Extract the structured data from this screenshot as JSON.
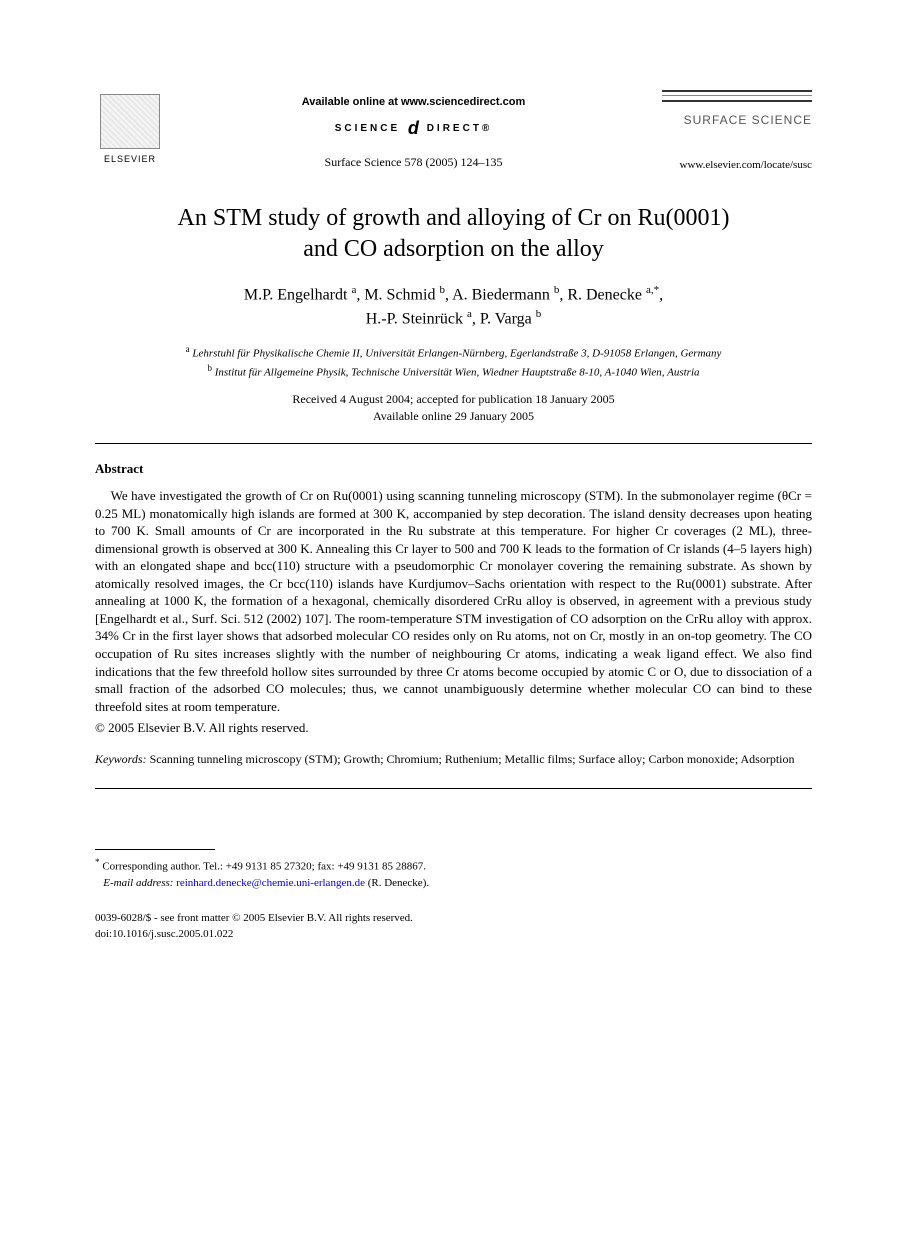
{
  "header": {
    "elsevier_label": "ELSEVIER",
    "available_online": "Available online at www.sciencedirect.com",
    "science_left": "SCIENCE",
    "science_at": "d",
    "science_right": "DIRECT®",
    "journal_ref": "Surface Science 578 (2005) 124–135",
    "journal_name": "SURFACE SCIENCE",
    "journal_url": "www.elsevier.com/locate/susc"
  },
  "title_line1": "An STM study of growth and alloying of Cr on Ru(0001)",
  "title_line2": "and CO adsorption on the alloy",
  "authors": {
    "a1": "M.P. Engelhardt",
    "a1_sup": "a",
    "a2": "M. Schmid",
    "a2_sup": "b",
    "a3": "A. Biedermann",
    "a3_sup": "b",
    "a4": "R. Denecke",
    "a4_sup": "a,*",
    "a5": "H.-P. Steinrück",
    "a5_sup": "a",
    "a6": "P. Varga",
    "a6_sup": "b"
  },
  "affiliations": {
    "a_sup": "a",
    "a_text": "Lehrstuhl für Physikalische Chemie II, Universität Erlangen-Nürnberg, Egerlandstraße 3, D-91058 Erlangen, Germany",
    "b_sup": "b",
    "b_text": "Institut für Allgemeine Physik, Technische Universität Wien, Wiedner Hauptstraße 8-10, A-1040 Wien, Austria"
  },
  "dates": {
    "received": "Received 4 August 2004; accepted for publication 18 January 2005",
    "online": "Available online 29 January 2005"
  },
  "abstract": {
    "heading": "Abstract",
    "body": "We have investigated the growth of Cr on Ru(0001) using scanning tunneling microscopy (STM). In the submonolayer regime (θCr = 0.25 ML) monatomically high islands are formed at 300 K, accompanied by step decoration. The island density decreases upon heating to 700 K. Small amounts of Cr are incorporated in the Ru substrate at this temperature. For higher Cr coverages (2 ML), three-dimensional growth is observed at 300 K. Annealing this Cr layer to 500 and 700 K leads to the formation of Cr islands (4–5 layers high) with an elongated shape and bcc(110) structure with a pseudomorphic Cr monolayer covering the remaining substrate. As shown by atomically resolved images, the Cr bcc(110) islands have Kurdjumov–Sachs orientation with respect to the Ru(0001) substrate. After annealing at 1000 K, the formation of a hexagonal, chemically disordered CrRu alloy is observed, in agreement with a previous study [Engelhardt et al., Surf. Sci. 512 (2002) 107]. The room-temperature STM investigation of CO adsorption on the CrRu alloy with approx. 34% Cr in the first layer shows that adsorbed molecular CO resides only on Ru atoms, not on Cr, mostly in an on-top geometry. The CO occupation of Ru sites increases slightly with the number of neighbouring Cr atoms, indicating a weak ligand effect. We also find indications that the few threefold hollow sites surrounded by three Cr atoms become occupied by atomic C or O, due to dissociation of a small fraction of the adsorbed CO molecules; thus, we cannot unambiguously determine whether molecular CO can bind to these threefold sites at room temperature.",
    "copyright": "© 2005 Elsevier B.V. All rights reserved."
  },
  "keywords": {
    "label": "Keywords:",
    "text": "Scanning tunneling microscopy (STM); Growth; Chromium; Ruthenium; Metallic films; Surface alloy; Carbon monoxide; Adsorption"
  },
  "corresponding": {
    "star": "*",
    "line1": "Corresponding author. Tel.: +49 9131 85 27320; fax: +49 9131 85 28867.",
    "email_label": "E-mail address:",
    "email": "reinhard.denecke@chemie.uni-erlangen.de",
    "email_person": "(R. Denecke)."
  },
  "footer": {
    "issn": "0039-6028/$ - see front matter © 2005 Elsevier B.V. All rights reserved.",
    "doi": "doi:10.1016/j.susc.2005.01.022"
  }
}
